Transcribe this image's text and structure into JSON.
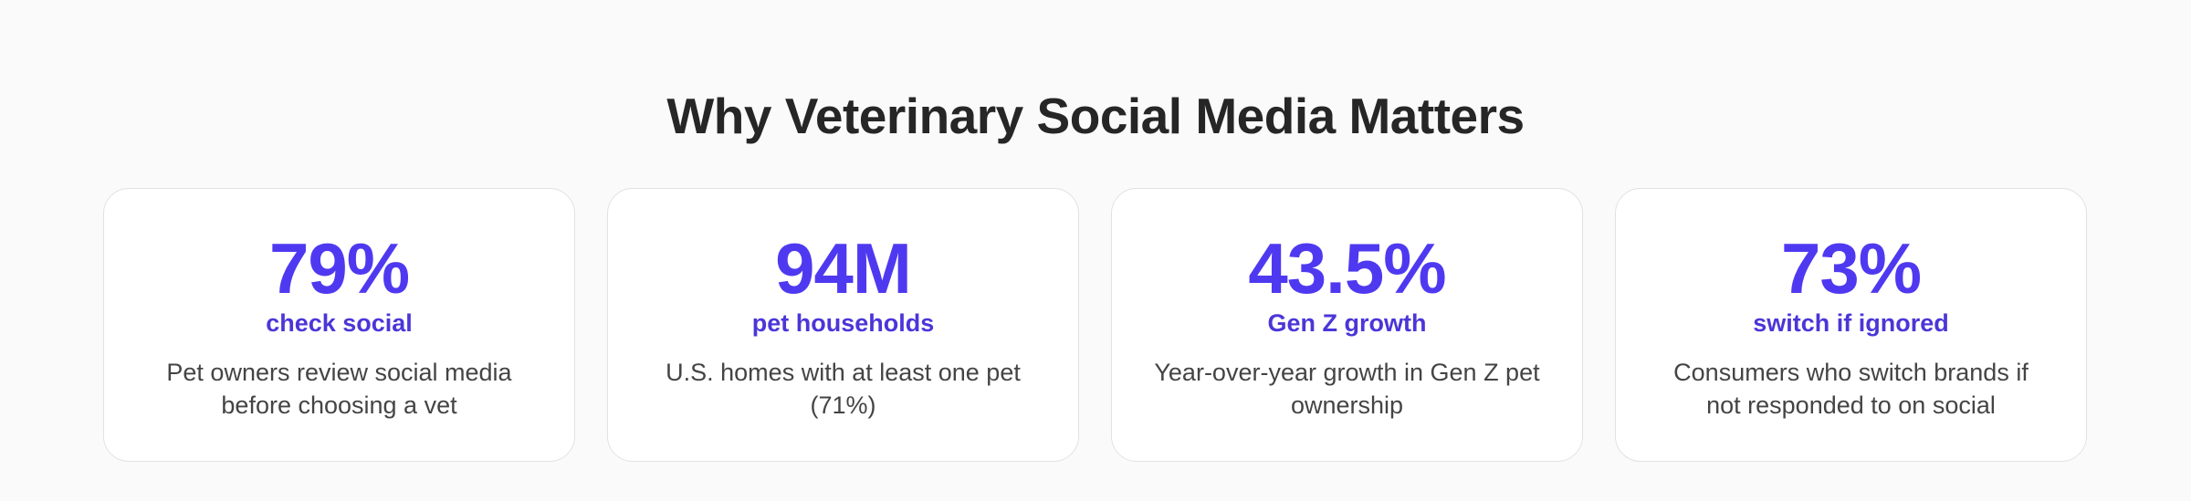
{
  "section": {
    "title": "Why Veterinary Social Media Matters"
  },
  "stats": [
    {
      "value": "79%",
      "label": "check social",
      "description": "Pet owners review social media before choosing a vet"
    },
    {
      "value": "94M",
      "label": "pet households",
      "description": "U.S. homes with at least one pet (71%)"
    },
    {
      "value": "43.5%",
      "label": "Gen Z growth",
      "description": "Year-over-year growth in Gen Z pet ownership"
    },
    {
      "value": "73%",
      "label": "switch if ignored",
      "description": "Consumers who switch brands if not responded to on social"
    }
  ],
  "colors": {
    "accent": "#4f39f0",
    "label": "#4a36d8",
    "background": "#fafafa",
    "card": "#ffffff"
  }
}
